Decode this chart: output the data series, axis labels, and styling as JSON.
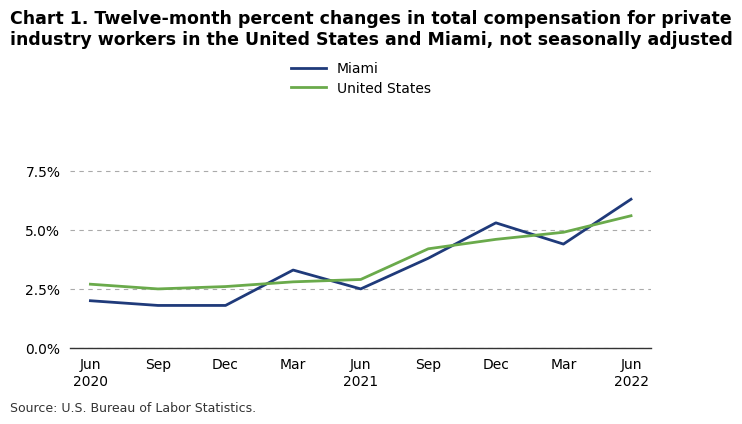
{
  "title": "Chart 1. Twelve-month percent changes in total compensation for private\nindustry workers in the United States and Miami, not seasonally adjusted",
  "source": "Source: U.S. Bureau of Labor Statistics.",
  "x_labels": [
    "Jun\n2020",
    "Sep",
    "Dec",
    "Mar",
    "Jun\n2021",
    "Sep",
    "Dec",
    "Mar",
    "Jun\n2022"
  ],
  "miami_values": [
    2.0,
    1.8,
    1.8,
    3.3,
    2.5,
    3.8,
    5.3,
    4.4,
    6.3
  ],
  "us_values": [
    2.7,
    2.5,
    2.6,
    2.8,
    2.9,
    4.2,
    4.6,
    4.9,
    5.6
  ],
  "miami_color": "#1f3a7a",
  "us_color": "#6aaa4b",
  "ylim": [
    0.0,
    8.75
  ],
  "yticks": [
    0.0,
    2.5,
    5.0,
    7.5
  ],
  "grid_color": "#aaaaaa",
  "background_color": "#ffffff",
  "legend_labels": [
    "Miami",
    "United States"
  ],
  "title_fontsize": 12.5,
  "tick_fontsize": 10,
  "source_fontsize": 9
}
